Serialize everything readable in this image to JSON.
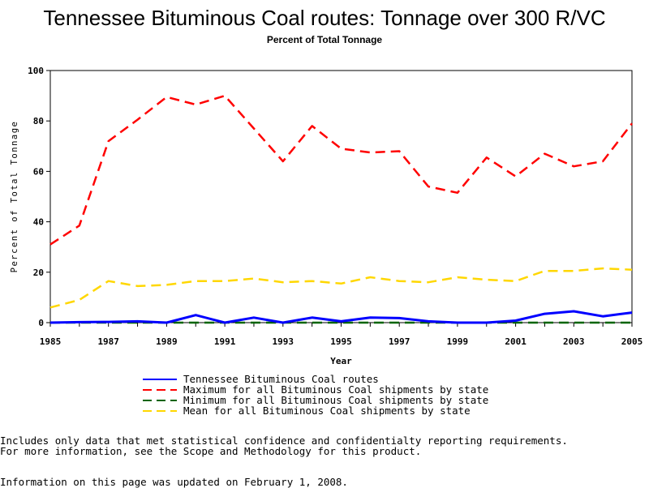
{
  "header": {
    "title": "Tennessee Bituminous Coal routes: Tonnage over 300 R/VC",
    "subtitle": "Percent of Total Tonnage"
  },
  "chart_data": {
    "type": "line",
    "xlabel": "Year",
    "ylabel": "Percent of Total Tonnage",
    "xlim": [
      1985,
      2005
    ],
    "ylim": [
      0,
      100
    ],
    "x_ticks": [
      "1985",
      "1987",
      "1989",
      "1991",
      "1993",
      "1995",
      "1997",
      "1999",
      "2001",
      "2003",
      "2005"
    ],
    "y_ticks": [
      "0",
      "20",
      "40",
      "60",
      "80",
      "100"
    ],
    "x": [
      1985,
      1986,
      1987,
      1988,
      1989,
      1990,
      1991,
      1992,
      1993,
      1994,
      1995,
      1996,
      1997,
      1998,
      1999,
      2000,
      2001,
      2002,
      2003,
      2004,
      2005
    ],
    "series": [
      {
        "name": "Tennessee Bituminous Coal routes",
        "color": "#0000ff",
        "style": "solid",
        "values": [
          0.0,
          0.2,
          0.3,
          0.5,
          0.0,
          3.0,
          0.0,
          2.0,
          0.0,
          2.0,
          0.5,
          2.0,
          1.8,
          0.5,
          0.0,
          0.0,
          0.8,
          3.5,
          4.5,
          2.5,
          4.0
        ]
      },
      {
        "name": "Maximum for all Bituminous Coal shipments by state",
        "color": "#ff0000",
        "style": "dashed",
        "values": [
          31.0,
          38.5,
          72.0,
          80.5,
          89.5,
          86.5,
          90.0,
          77.0,
          64.0,
          78.0,
          69.0,
          67.5,
          68.0,
          54.0,
          51.5,
          65.5,
          58.0,
          67.0,
          62.0,
          64.0,
          79.0
        ]
      },
      {
        "name": "Minimum for all Bituminous Coal shipments by state",
        "color": "#006400",
        "style": "dashed",
        "values": [
          0,
          0,
          0,
          0,
          0,
          0,
          0,
          0,
          0,
          0,
          0,
          0,
          0,
          0,
          0,
          0,
          0,
          0,
          0,
          0,
          0
        ]
      },
      {
        "name": "Mean for all Bituminous Coal shipments by state",
        "color": "#ffd700",
        "style": "dashed",
        "values": [
          6.0,
          9.0,
          16.5,
          14.5,
          15.0,
          16.5,
          16.5,
          17.5,
          16.0,
          16.5,
          15.5,
          18.0,
          16.5,
          16.0,
          18.0,
          17.0,
          16.5,
          20.5,
          20.5,
          21.5,
          21.0
        ]
      }
    ]
  },
  "notes": {
    "line1": "Includes only data that met statistical confidence and confidentialty reporting requirements.",
    "line2": "For more information, see the Scope and Methodology for this product.",
    "updated": "Information on this page was updated on February 1, 2008."
  }
}
